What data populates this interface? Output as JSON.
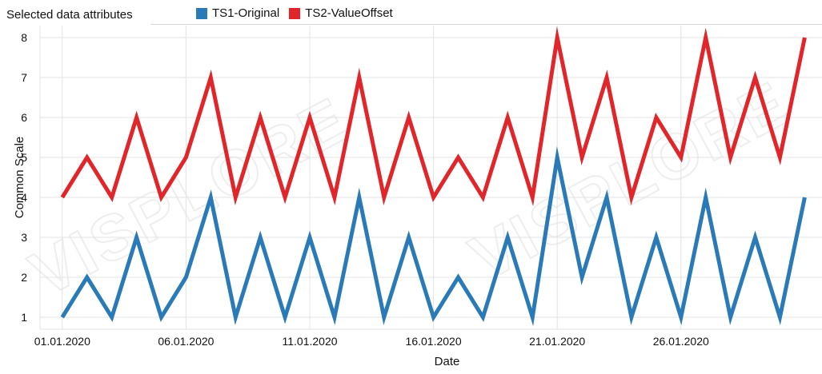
{
  "header": {
    "title": "Selected data attributes"
  },
  "watermark": "VISPLORE",
  "chart_data": {
    "type": "line",
    "xlabel": "Date",
    "ylabel": "Common Scale",
    "ylim": [
      0.7,
      8.3
    ],
    "yticks": [
      1,
      2,
      3,
      4,
      5,
      6,
      7,
      8
    ],
    "x_tick_labels": [
      "01.01.2020",
      "06.01.2020",
      "11.01.2020",
      "16.01.2020",
      "21.01.2020",
      "26.01.2020"
    ],
    "x_tick_days": [
      1,
      6,
      11,
      16,
      21,
      26
    ],
    "x": [
      1,
      2,
      3,
      4,
      5,
      6,
      7,
      8,
      9,
      10,
      11,
      12,
      13,
      14,
      15,
      16,
      17,
      18,
      19,
      20,
      21,
      22,
      23,
      24,
      25,
      26,
      27,
      28,
      29,
      30,
      31
    ],
    "xlim": [
      0.1,
      31.7
    ],
    "grid": true,
    "legend_position": "top",
    "series": [
      {
        "name": "TS1-Original",
        "color": "#2a7ab7",
        "values": [
          1,
          2,
          1,
          3,
          1,
          2,
          4,
          1,
          3,
          1,
          3,
          1,
          4,
          1,
          3,
          1,
          2,
          1,
          3,
          1,
          5,
          2,
          4,
          1,
          3,
          1,
          4,
          1,
          3,
          1,
          4
        ]
      },
      {
        "name": "TS2-ValueOffset",
        "color": "#e0262a",
        "values": [
          4,
          5,
          4,
          6,
          4,
          5,
          7,
          4,
          6,
          4,
          6,
          4,
          7,
          4,
          6,
          4,
          5,
          4,
          6,
          4,
          8,
          5,
          7,
          4,
          6,
          5,
          8,
          5,
          7,
          5,
          8
        ]
      }
    ]
  }
}
